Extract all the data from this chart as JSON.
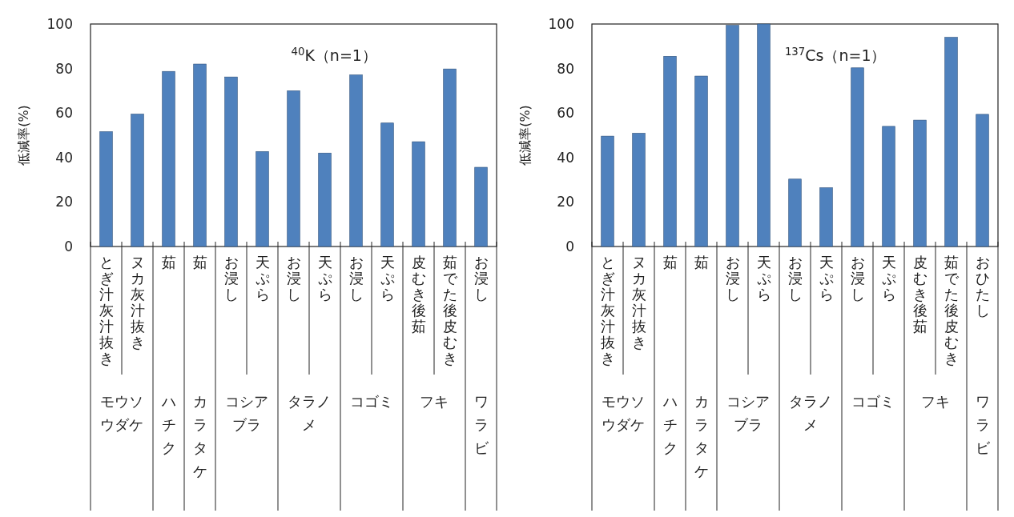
{
  "chart_data": [
    {
      "type": "bar",
      "title": "$^{40}$K（n=1）",
      "ylabel": "低減率(%)",
      "categories": [
        "とぎ汁灰汁抜き",
        "ヌカ灰汁抜き",
        "茹",
        "茹",
        "お浸し",
        "天ぷら",
        "お浸し",
        "天ぷら",
        "お浸し",
        "天ぷら",
        "皮むき後茹",
        "茹でた後皮むき",
        "お浸し"
      ],
      "values": [
        51.6,
        59.5,
        78.7,
        82,
        76.2,
        42.7,
        70,
        42,
        77.1,
        55.5,
        47.1,
        79.8,
        35.6
      ],
      "color": "#4f81bd",
      "ylim": [
        0,
        100
      ],
      "yticks": [
        0,
        20,
        40,
        60,
        80,
        100
      ],
      "grid": false,
      "annotations": [
        "モウソウダケ",
        "ハチク",
        "カラタケ",
        "コシアブラ",
        "タラノメ",
        "コゴミ",
        "フキ",
        "ワラビ"
      ]
    },
    {
      "type": "bar",
      "title": "$^{137}$Cs（n=1）",
      "ylabel": "低減率(%)",
      "categories": [
        "とぎ汁灰汁抜き",
        "ヌカ灰汁抜き",
        "茹",
        "茹",
        "お浸し",
        "天ぷら",
        "お浸し",
        "天ぷら",
        "お浸し",
        "天ぷら",
        "皮むき後茹",
        "茹でた後皮むき",
        "おひたし"
      ],
      "values": [
        49.6,
        50.9,
        85.5,
        76.6,
        99.4,
        100,
        30.3,
        26.4,
        80.3,
        54,
        56.8,
        94,
        59.4
      ],
      "color": "#4f81bd",
      "ylim": [
        0,
        100
      ],
      "yticks": [
        0,
        20,
        40,
        60,
        80,
        100
      ],
      "grid": false,
      "annotations": [
        "モウソウダケ",
        "ハチク",
        "カラタケ",
        "コシアブラ",
        "タラノメ",
        "コゴミ",
        "フキ",
        "ワラビ"
      ]
    }
  ]
}
